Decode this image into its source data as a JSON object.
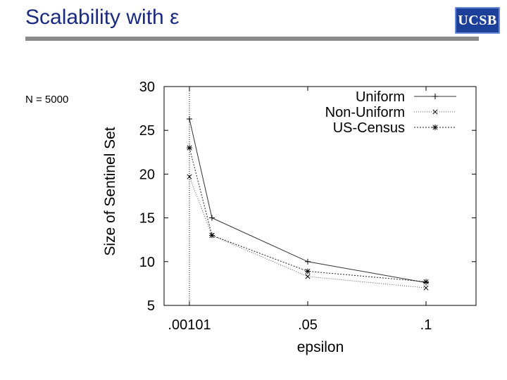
{
  "slide": {
    "title": "Scalability with ε",
    "note": "N = 5000",
    "logo_text": "UCSB",
    "colors": {
      "title": "#1a2a80",
      "rule": "#8a8a8a",
      "logo_bg": "#1c3f9a"
    }
  },
  "chart_data": {
    "type": "line",
    "title": "",
    "xlabel": "epsilon",
    "ylabel": "Size of Sentinel Set",
    "x": [
      ".00101",
      ".05",
      ".1"
    ],
    "ylim": [
      5,
      30
    ],
    "yticks": [
      5,
      10,
      15,
      20,
      25,
      30
    ],
    "grid": false,
    "legend_position": "top-right",
    "series": [
      {
        "name": "Uniform",
        "marker": "plus",
        "dash": "solid",
        "points": [
          [
            ".00101",
            26.3
          ],
          [
            ".00101+",
            15.0
          ],
          [
            ".05",
            10.0
          ],
          [
            ".1",
            7.6
          ]
        ]
      },
      {
        "name": "Non-Uniform",
        "marker": "cross",
        "dash": "dotted",
        "points": [
          [
            ".00101",
            19.7
          ],
          [
            ".00101+",
            13.0
          ],
          [
            ".05",
            8.3
          ],
          [
            ".1",
            7.0
          ]
        ]
      },
      {
        "name": "US-Census",
        "marker": "star",
        "dash": "dashed",
        "points": [
          [
            ".00101",
            23.0
          ],
          [
            ".00101+",
            13.0
          ],
          [
            ".05",
            8.9
          ],
          [
            ".1",
            7.7
          ]
        ]
      }
    ]
  }
}
